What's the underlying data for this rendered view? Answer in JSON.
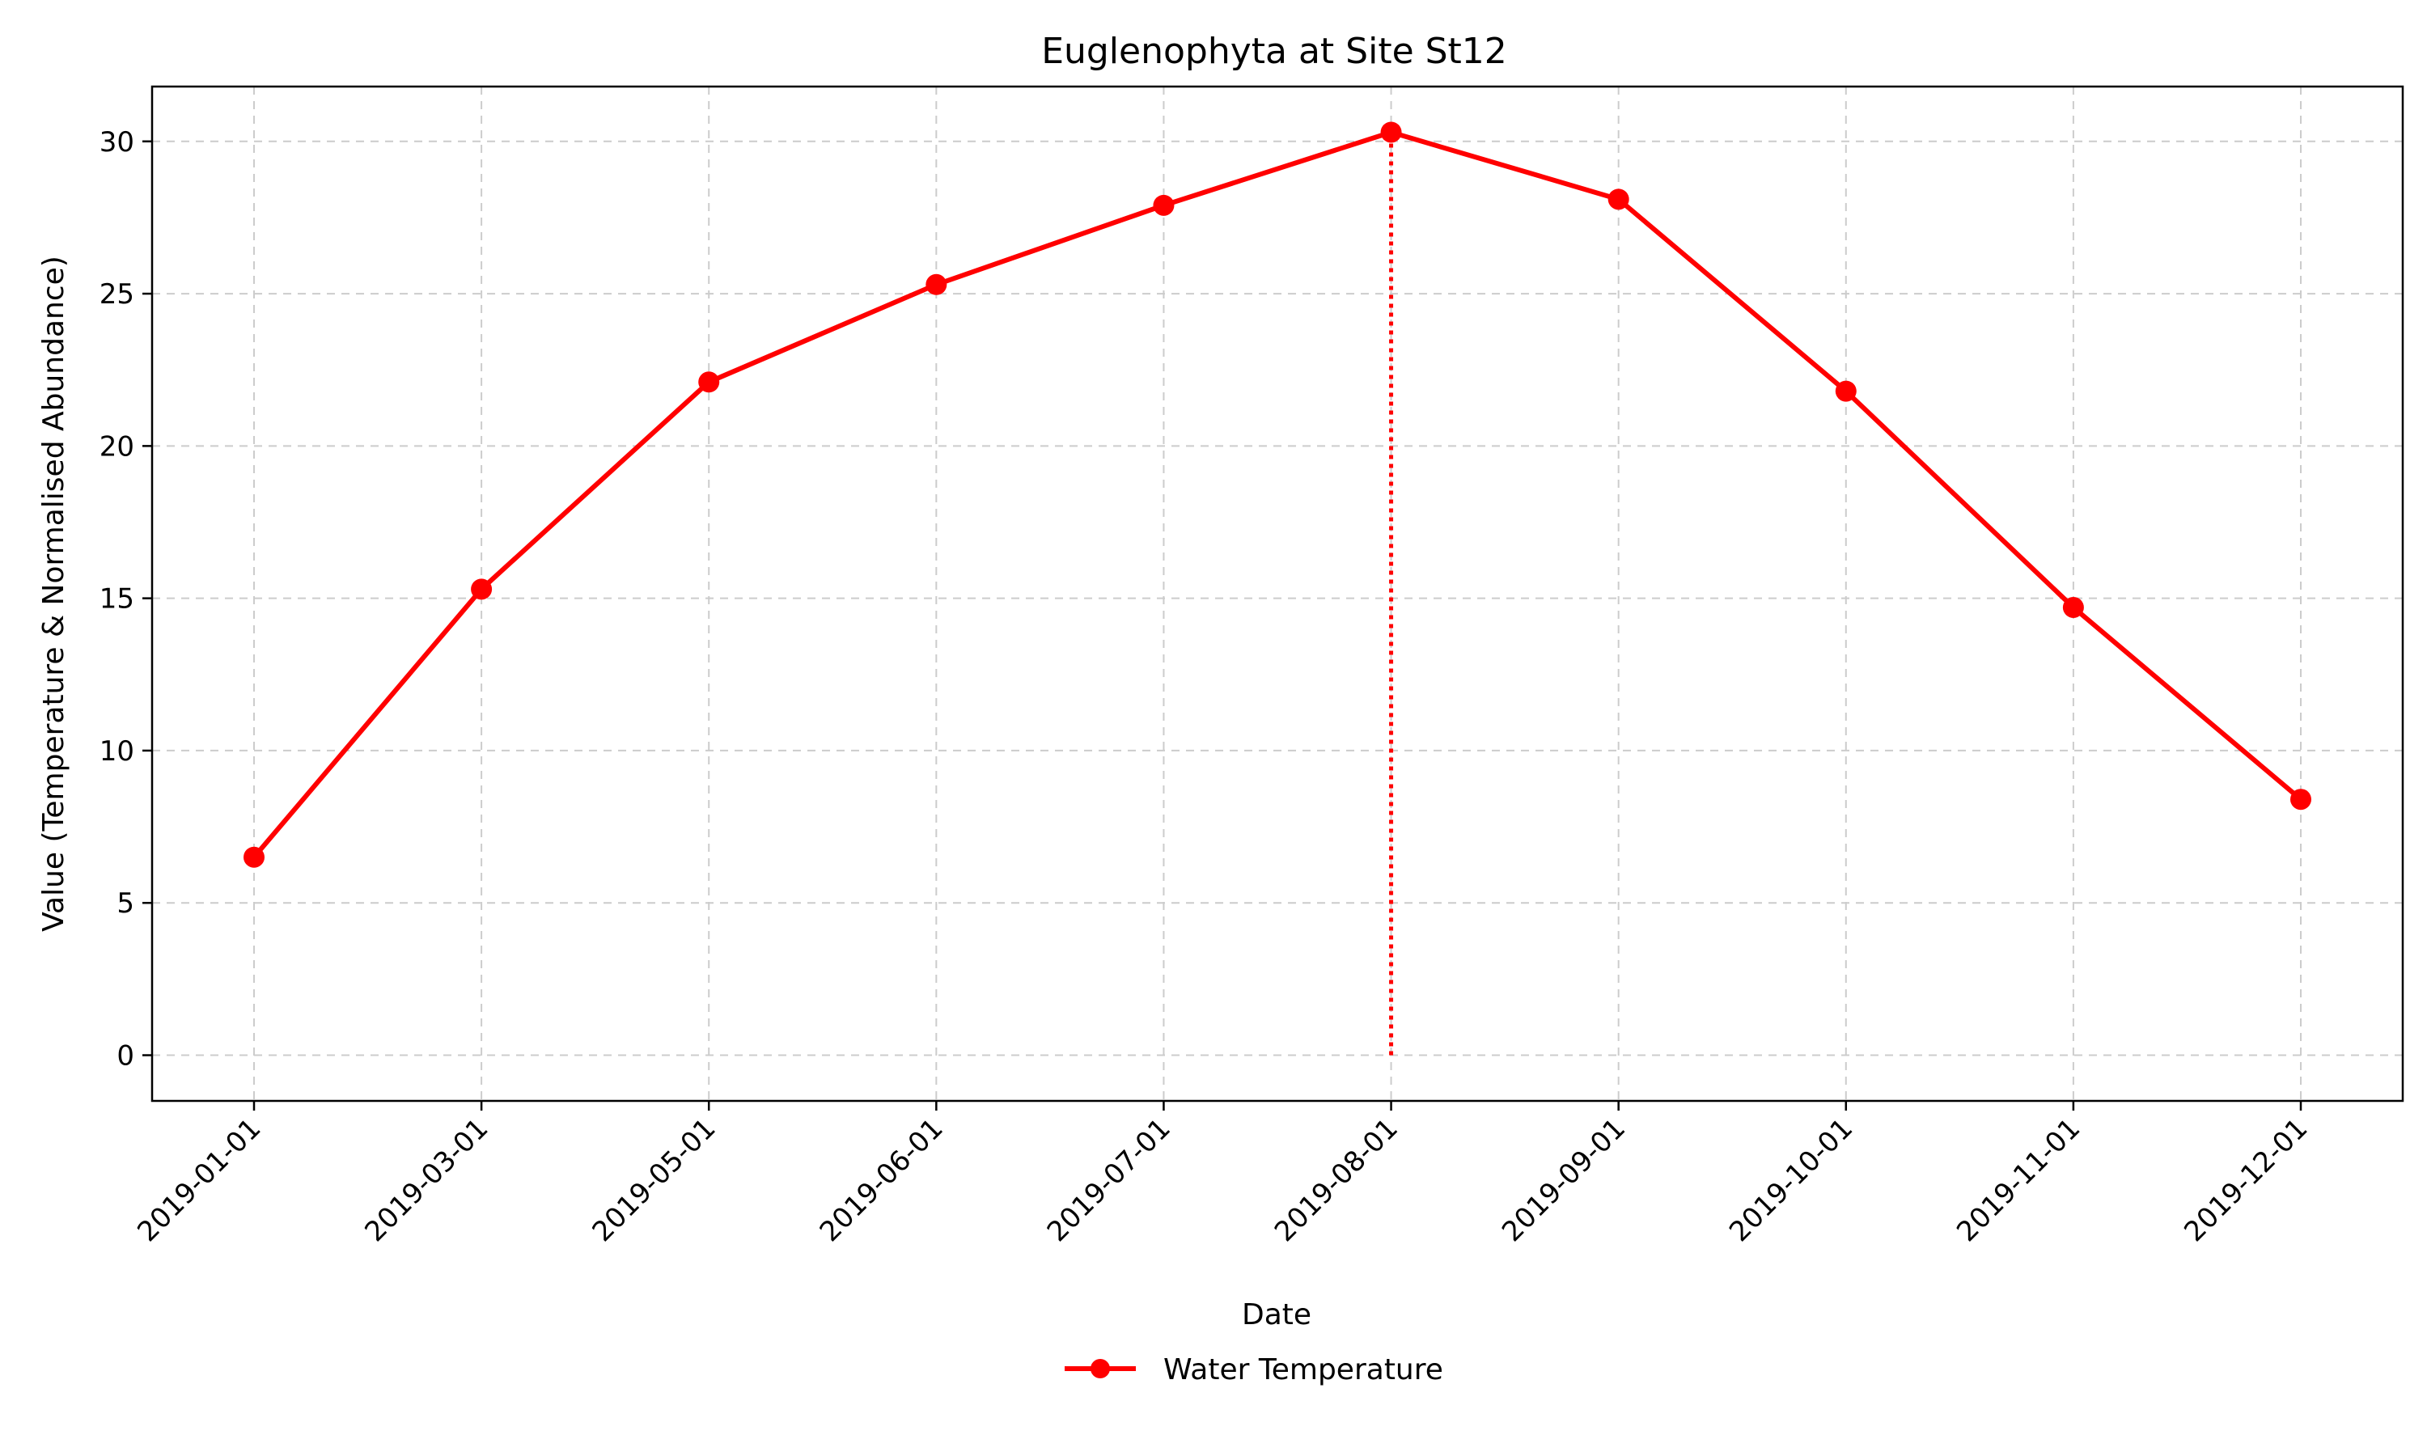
{
  "chart_data": {
    "type": "line",
    "title": "Euglenophyta at Site St12",
    "xlabel": "Date",
    "ylabel": "Value (Temperature & Normalised Abundance)",
    "categories": [
      "2019-01-01",
      "2019-03-01",
      "2019-05-01",
      "2019-06-01",
      "2019-07-01",
      "2019-08-01",
      "2019-09-01",
      "2019-10-01",
      "2019-11-01",
      "2019-12-01"
    ],
    "series": [
      {
        "name": "Water Temperature",
        "color": "#ff0000",
        "marker": "circle",
        "values": [
          6.5,
          15.3,
          22.1,
          25.3,
          27.9,
          30.3,
          28.1,
          21.8,
          14.7,
          8.4
        ]
      }
    ],
    "peak_marker": {
      "category": "2019-08-01",
      "value": 30.3,
      "style": "dotted",
      "color": "#ff0000"
    },
    "ylim": [
      -1.5,
      31.8
    ],
    "yticks": [
      0,
      5,
      10,
      15,
      20,
      25,
      30
    ],
    "grid": true,
    "legend_position": "bottom-center"
  }
}
